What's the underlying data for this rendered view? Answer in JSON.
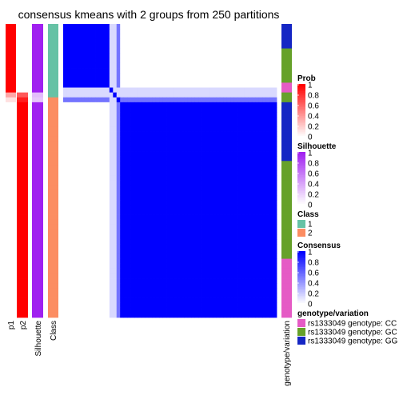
{
  "chart_data": {
    "type": "heatmap",
    "title": "consensus kmeans with 2 groups from 250 partitions",
    "n_samples": 60,
    "annotation_tracks": [
      "p1",
      "p2",
      "Silhouette",
      "Class"
    ],
    "right_annotation": "genotype/variation",
    "samples": {
      "class": [
        1,
        1,
        1,
        1,
        1,
        1,
        1,
        1,
        1,
        1,
        1,
        1,
        1,
        1,
        1,
        2,
        2,
        2,
        2,
        2,
        2,
        2,
        2,
        2,
        2,
        2,
        2,
        2,
        2,
        2,
        2,
        2,
        2,
        2,
        2,
        2,
        2,
        2,
        2,
        2,
        2,
        2,
        2,
        2,
        2,
        2,
        2,
        2,
        2,
        2,
        2,
        2,
        2,
        2,
        2,
        2,
        2,
        2,
        2,
        2
      ],
      "p1": [
        1,
        1,
        1,
        1,
        1,
        1,
        1,
        1,
        1,
        1,
        1,
        1,
        1,
        1,
        0.35,
        0.12,
        0,
        0,
        0,
        0,
        0,
        0,
        0,
        0,
        0,
        0,
        0,
        0,
        0,
        0,
        0,
        0,
        0,
        0,
        0,
        0,
        0,
        0,
        0,
        0,
        0,
        0,
        0,
        0,
        0,
        0,
        0,
        0,
        0,
        0,
        0,
        0,
        0,
        0,
        0,
        0,
        0,
        0,
        0,
        0
      ],
      "p2": [
        0,
        0,
        0,
        0,
        0,
        0,
        0,
        0,
        0,
        0,
        0,
        0,
        0,
        0,
        0.65,
        0.88,
        1,
        1,
        1,
        1,
        1,
        1,
        1,
        1,
        1,
        1,
        1,
        1,
        1,
        1,
        1,
        1,
        1,
        1,
        1,
        1,
        1,
        1,
        1,
        1,
        1,
        1,
        1,
        1,
        1,
        1,
        1,
        1,
        1,
        1,
        1,
        1,
        1,
        1,
        1,
        1,
        1,
        1,
        1,
        1
      ],
      "silhouette": [
        1,
        1,
        1,
        1,
        1,
        1,
        1,
        1,
        1,
        1,
        1,
        1,
        1,
        1,
        0.3,
        0.25,
        1,
        1,
        1,
        1,
        1,
        1,
        1,
        1,
        1,
        1,
        1,
        1,
        1,
        1,
        1,
        1,
        1,
        1,
        1,
        1,
        1,
        1,
        1,
        1,
        1,
        1,
        1,
        1,
        1,
        1,
        1,
        1,
        1,
        1,
        1,
        1,
        1,
        1,
        1,
        1,
        1,
        1,
        1,
        1
      ],
      "genotype": [
        "GG",
        "GG",
        "GG",
        "GG",
        "GG",
        "GC",
        "GC",
        "GC",
        "GC",
        "GC",
        "GC",
        "GC",
        "CC",
        "CC",
        "GC",
        "GC",
        "GG",
        "GG",
        "GG",
        "GG",
        "GG",
        "GG",
        "GG",
        "GG",
        "GG",
        "GG",
        "GG",
        "GG",
        "GC",
        "GC",
        "GC",
        "GC",
        "GC",
        "GC",
        "GC",
        "GC",
        "GC",
        "GC",
        "GC",
        "GC",
        "GC",
        "GC",
        "GC",
        "GC",
        "GC",
        "GC",
        "GC",
        "GC",
        "CC",
        "CC",
        "CC",
        "CC",
        "CC",
        "CC",
        "CC",
        "CC",
        "CC",
        "CC",
        "CC",
        "CC"
      ]
    },
    "consensus_blocks": [
      {
        "from": 0,
        "to": 12,
        "value_within": 1,
        "value_outside": 0
      },
      {
        "from": 13,
        "to": 14,
        "value_within": 0.15,
        "value_outside": 0.15
      },
      {
        "from": 15,
        "to": 15,
        "value_within": 0.7,
        "value_outside": 0.12
      },
      {
        "from": 16,
        "to": 59,
        "value_within": 1,
        "value_outside": 0
      }
    ],
    "legends": [
      {
        "title": "Prob",
        "type": "gradient",
        "color": "#ff0000",
        "ticks": [
          "1",
          "0.8",
          "0.6",
          "0.4",
          "0.2",
          "0"
        ]
      },
      {
        "title": "Silhouette",
        "type": "gradient",
        "color": "#a020f0",
        "ticks": [
          "1",
          "0.8",
          "0.6",
          "0.4",
          "0.2",
          "0"
        ]
      },
      {
        "title": "Class",
        "type": "discrete",
        "items": [
          {
            "label": "1",
            "color": "#66c2a5"
          },
          {
            "label": "2",
            "color": "#fc8d62"
          }
        ]
      },
      {
        "title": "Consensus",
        "type": "gradient",
        "color": "#0000ff",
        "ticks": [
          "1",
          "0.8",
          "0.6",
          "0.4",
          "0.2",
          "0"
        ]
      },
      {
        "title": "genotype/variation",
        "type": "discrete",
        "items": [
          {
            "label": "rs1333049 genotype: CC",
            "color": "#e55bc5"
          },
          {
            "label": "rs1333049 genotype: GC",
            "color": "#66a12a"
          },
          {
            "label": "rs1333049 genotype: GG",
            "color": "#1526c4"
          }
        ]
      }
    ],
    "colors": {
      "prob": "#ff0000",
      "silhouette": "#a020f0",
      "class1": "#66c2a5",
      "class2": "#fc8d62",
      "consensus": "#0000ff",
      "CC": "#e55bc5",
      "GC": "#66a12a",
      "GG": "#1526c4"
    }
  }
}
